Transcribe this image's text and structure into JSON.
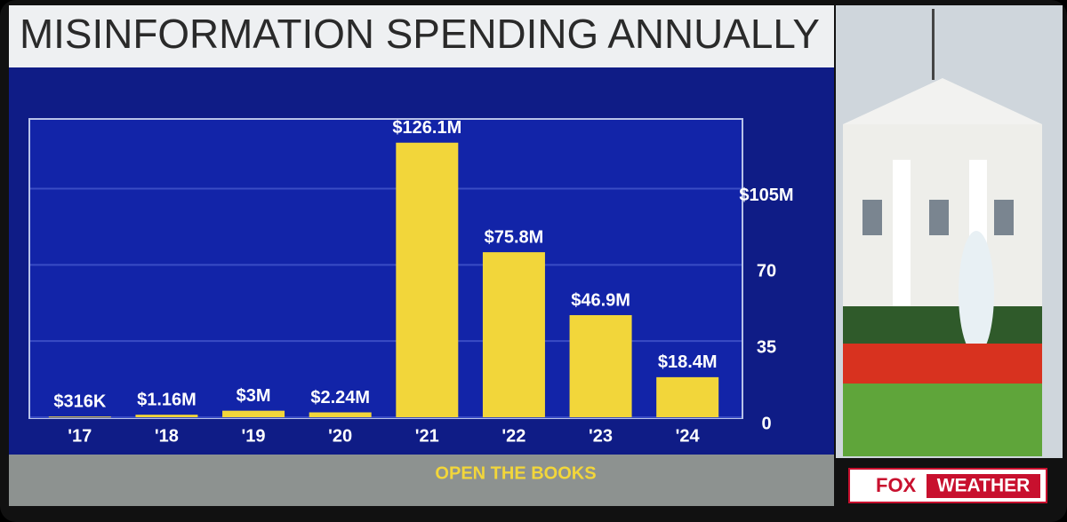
{
  "chart_data": {
    "type": "bar",
    "title": "MISINFORMATION SPENDING ANNUALLY",
    "categories": [
      "'17",
      "'18",
      "'19",
      "'20",
      "'21",
      "'22",
      "'23",
      "'24"
    ],
    "values": [
      0.316,
      1.16,
      3,
      2.24,
      126.1,
      75.8,
      46.9,
      18.4
    ],
    "value_labels": [
      "$316K",
      "$1.16M",
      "$3M",
      "$2.24M",
      "$126.1M",
      "$75.8M",
      "$46.9M",
      "$18.4M"
    ],
    "color": "#f2d63a",
    "ylim": [
      0,
      137
    ],
    "yticks": [
      0,
      35,
      70,
      {
        "value": 105,
        "label": "$105M"
      }
    ],
    "grid": true,
    "source": "OPEN THE BOOKS"
  },
  "logo": {
    "left": "FOX",
    "right": "WEATHER"
  }
}
